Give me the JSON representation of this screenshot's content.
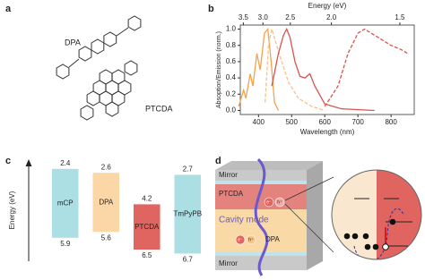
{
  "panel_a": {
    "label": "a",
    "molecules": [
      "DPA",
      "PTCDA"
    ]
  },
  "chart_data": [
    {
      "type": "line",
      "panel_label": "b",
      "xlabel": "Wavelength (nm)",
      "ylabel": "Absoption/Emission (norm.)",
      "x2label": "Energy (eV)",
      "xlim": [
        345,
        870
      ],
      "ylim": [
        -0.05,
        1.05
      ],
      "xticks": [
        400,
        500,
        600,
        700,
        800
      ],
      "yticks": [
        {
          "value": 0,
          "label": "0.0"
        },
        0.2,
        0.4,
        0.6,
        0.8,
        {
          "value": 1,
          "label": "1.0"
        }
      ],
      "x2ticks": [
        3.5,
        {
          "value": 3,
          "label": "3.0"
        },
        2.5,
        {
          "value": 2,
          "label": "2.0"
        },
        1.5
      ],
      "series": [
        {
          "color": "#f4a24c",
          "dashed": false,
          "x": [
            340,
            355,
            362,
            375,
            383,
            395,
            405,
            418,
            428,
            438,
            448,
            460
          ],
          "values": [
            0.05,
            0.25,
            0.15,
            0.45,
            0.3,
            0.7,
            0.5,
            0.95,
            1.0,
            0.6,
            0.1,
            0.0
          ]
        },
        {
          "color": "#f6c28a",
          "dashed": true,
          "x": [
            420,
            430,
            440,
            455,
            470,
            490,
            520,
            560,
            600
          ],
          "values": [
            0.1,
            0.8,
            1.0,
            0.8,
            0.6,
            0.35,
            0.15,
            0.05,
            0.0
          ]
        },
        {
          "color": "#d9534f",
          "dashed": false,
          "x": [
            440,
            460,
            475,
            485,
            495,
            510,
            525,
            540,
            555,
            570,
            600,
            650,
            750
          ],
          "values": [
            0.3,
            0.7,
            0.92,
            1.0,
            0.9,
            0.6,
            0.42,
            0.4,
            0.45,
            0.3,
            0.08,
            0.02,
            0.0
          ]
        },
        {
          "color": "#d9534f",
          "dashed": true,
          "x": [
            600,
            640,
            670,
            700,
            720,
            740,
            760,
            780,
            800,
            830,
            850
          ],
          "values": [
            0.05,
            0.3,
            0.7,
            0.95,
            1.0,
            0.95,
            0.9,
            0.85,
            0.8,
            0.75,
            0.7
          ]
        }
      ]
    },
    {
      "type": "floating-bar",
      "panel_label": "c",
      "ylabel": "Energy (eV)",
      "ylim": [
        2,
        7
      ],
      "inverted": true,
      "categories": [
        "mCP",
        "DPA",
        "PTCDA",
        "TmPyPB"
      ],
      "top": [
        2.4,
        2.6,
        4.2,
        2.7
      ],
      "bottom": [
        5.9,
        5.6,
        6.5,
        6.7
      ],
      "colors": [
        "#acdfe3",
        "#fbd7a8",
        "#e0645f",
        "#acdfe3"
      ]
    }
  ],
  "panel_d": {
    "label": "d",
    "layers": [
      "Mirror",
      "PTCDA",
      "Cavity mode",
      "DPA",
      "Mirror"
    ],
    "electron": "e⁻",
    "hole": "h⁺"
  }
}
